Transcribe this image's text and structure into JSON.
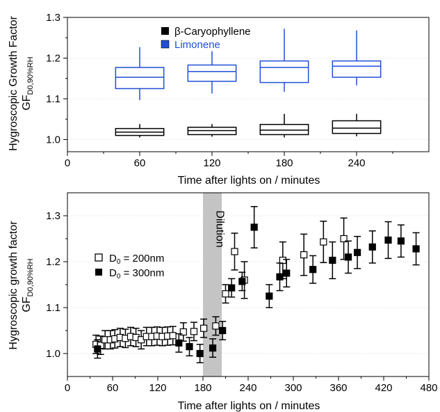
{
  "chart_data": [
    {
      "type": "box",
      "ylabel": "Hygroscopic Growth Factor",
      "ylabel_sub_base": "GF",
      "ylabel_sub": "D0,90%RH",
      "xlabel": "Time after lights on / minutes",
      "xlim": [
        0,
        300
      ],
      "ylim": [
        0.97,
        1.3
      ],
      "xticks": [
        "0",
        "60",
        "120",
        "180",
        "240"
      ],
      "xtick_values": [
        0,
        60,
        120,
        180,
        240
      ],
      "yticks": [
        "1.0",
        "1.1",
        "1.2",
        "1.3"
      ],
      "ytick_values": [
        1.0,
        1.1,
        1.2,
        1.3
      ],
      "grid": true,
      "legend_position": "top-center",
      "series": [
        {
          "name": "β-Caryophyllene",
          "color": "#000000",
          "boxes": [
            {
              "x": 60,
              "whisker_low": 1.005,
              "q1": 1.01,
              "median": 1.018,
              "q3": 1.027,
              "whisker_high": 1.038
            },
            {
              "x": 120,
              "whisker_low": 1.007,
              "q1": 1.012,
              "median": 1.022,
              "q3": 1.03,
              "whisker_high": 1.038
            },
            {
              "x": 180,
              "whisker_low": 1.005,
              "q1": 1.012,
              "median": 1.023,
              "q3": 1.037,
              "whisker_high": 1.063
            },
            {
              "x": 240,
              "whisker_low": 1.008,
              "q1": 1.015,
              "median": 1.028,
              "q3": 1.046,
              "whisker_high": 1.063
            }
          ]
        },
        {
          "name": "Limonene",
          "color": "#1f4fd6",
          "boxes": [
            {
              "x": 60,
              "whisker_low": 1.097,
              "q1": 1.125,
              "median": 1.153,
              "q3": 1.177,
              "whisker_high": 1.227
            },
            {
              "x": 120,
              "whisker_low": 1.113,
              "q1": 1.143,
              "median": 1.167,
              "q3": 1.183,
              "whisker_high": 1.217
            },
            {
              "x": 180,
              "whisker_low": 1.117,
              "q1": 1.14,
              "median": 1.177,
              "q3": 1.193,
              "whisker_high": 1.272
            },
            {
              "x": 240,
              "whisker_low": 1.133,
              "q1": 1.153,
              "median": 1.18,
              "q3": 1.193,
              "whisker_high": 1.268
            }
          ]
        }
      ]
    },
    {
      "type": "scatter",
      "ylabel": "Hygroscopic growth factor",
      "ylabel_sub_base": "GF",
      "ylabel_sub": "D0,90%RH",
      "xlabel": "Time after lights on / minutes",
      "xlim": [
        0,
        480
      ],
      "ylim": [
        0.95,
        1.35
      ],
      "xticks": [
        "0",
        "60",
        "120",
        "180",
        "240",
        "300",
        "360",
        "420",
        "480"
      ],
      "xtick_values": [
        0,
        60,
        120,
        180,
        240,
        300,
        360,
        420,
        480
      ],
      "yticks": [
        "1.0",
        "1.1",
        "1.2",
        "1.3"
      ],
      "ytick_values": [
        1.0,
        1.1,
        1.2,
        1.3
      ],
      "grid": true,
      "legend_position": "middle-left",
      "annotation": {
        "text": "Dilution",
        "x_range": [
          180,
          205
        ],
        "color": "#c4c4c4"
      },
      "series": [
        {
          "name": "D0 = 200nm",
          "label_base": "D",
          "label_sub": "0",
          "label_rest": " = 200nm",
          "marker": "open-square",
          "points": [
            {
              "x": 38,
              "y": 1.02,
              "err": 0.02
            },
            {
              "x": 44,
              "y": 1.018,
              "err": 0.02
            },
            {
              "x": 50,
              "y": 1.03,
              "err": 0.02
            },
            {
              "x": 57,
              "y": 1.03,
              "err": 0.02
            },
            {
              "x": 63,
              "y": 1.032,
              "err": 0.02
            },
            {
              "x": 70,
              "y": 1.035,
              "err": 0.02
            },
            {
              "x": 77,
              "y": 1.033,
              "err": 0.02
            },
            {
              "x": 84,
              "y": 1.037,
              "err": 0.02
            },
            {
              "x": 91,
              "y": 1.035,
              "err": 0.02
            },
            {
              "x": 98,
              "y": 1.03,
              "err": 0.02
            },
            {
              "x": 105,
              "y": 1.037,
              "err": 0.02
            },
            {
              "x": 112,
              "y": 1.037,
              "err": 0.02
            },
            {
              "x": 119,
              "y": 1.038,
              "err": 0.02
            },
            {
              "x": 126,
              "y": 1.037,
              "err": 0.02
            },
            {
              "x": 133,
              "y": 1.038,
              "err": 0.02
            },
            {
              "x": 140,
              "y": 1.039,
              "err": 0.02
            },
            {
              "x": 154,
              "y": 1.047,
              "err": 0.02
            },
            {
              "x": 168,
              "y": 1.048,
              "err": 0.02
            },
            {
              "x": 181,
              "y": 1.055,
              "err": 0.02
            },
            {
              "x": 197,
              "y": 1.06,
              "err": 0.02
            },
            {
              "x": 210,
              "y": 1.13,
              "err": 0.02
            },
            {
              "x": 222,
              "y": 1.222,
              "err": 0.04
            },
            {
              "x": 235,
              "y": 1.16,
              "err": 0.04
            },
            {
              "x": 286,
              "y": 1.203,
              "err": 0.04
            },
            {
              "x": 314,
              "y": 1.215,
              "err": 0.045
            },
            {
              "x": 340,
              "y": 1.243,
              "err": 0.045
            },
            {
              "x": 367,
              "y": 1.25,
              "err": 0.045
            }
          ]
        },
        {
          "name": "D0 = 300nm",
          "label_base": "D",
          "label_sub": "0",
          "label_rest": " = 300nm",
          "marker": "filled-square",
          "points": [
            {
              "x": 40,
              "y": 1.01,
              "err": 0.02
            },
            {
              "x": 148,
              "y": 1.023,
              "err": 0.02
            },
            {
              "x": 162,
              "y": 1.015,
              "err": 0.02
            },
            {
              "x": 176,
              "y": 1.0,
              "err": 0.02
            },
            {
              "x": 193,
              "y": 1.012,
              "err": 0.02
            },
            {
              "x": 206,
              "y": 1.05,
              "err": 0.02
            },
            {
              "x": 218,
              "y": 1.143,
              "err": 0.02
            },
            {
              "x": 232,
              "y": 1.157,
              "err": 0.02
            },
            {
              "x": 248,
              "y": 1.275,
              "err": 0.045
            },
            {
              "x": 268,
              "y": 1.125,
              "err": 0.025
            },
            {
              "x": 282,
              "y": 1.167,
              "err": 0.03
            },
            {
              "x": 291,
              "y": 1.175,
              "err": 0.03
            },
            {
              "x": 326,
              "y": 1.183,
              "err": 0.03
            },
            {
              "x": 352,
              "y": 1.203,
              "err": 0.04
            },
            {
              "x": 373,
              "y": 1.21,
              "err": 0.035
            },
            {
              "x": 385,
              "y": 1.22,
              "err": 0.035
            },
            {
              "x": 405,
              "y": 1.232,
              "err": 0.035
            },
            {
              "x": 426,
              "y": 1.247,
              "err": 0.04
            },
            {
              "x": 443,
              "y": 1.245,
              "err": 0.035
            },
            {
              "x": 463,
              "y": 1.228,
              "err": 0.035
            }
          ]
        }
      ]
    }
  ]
}
